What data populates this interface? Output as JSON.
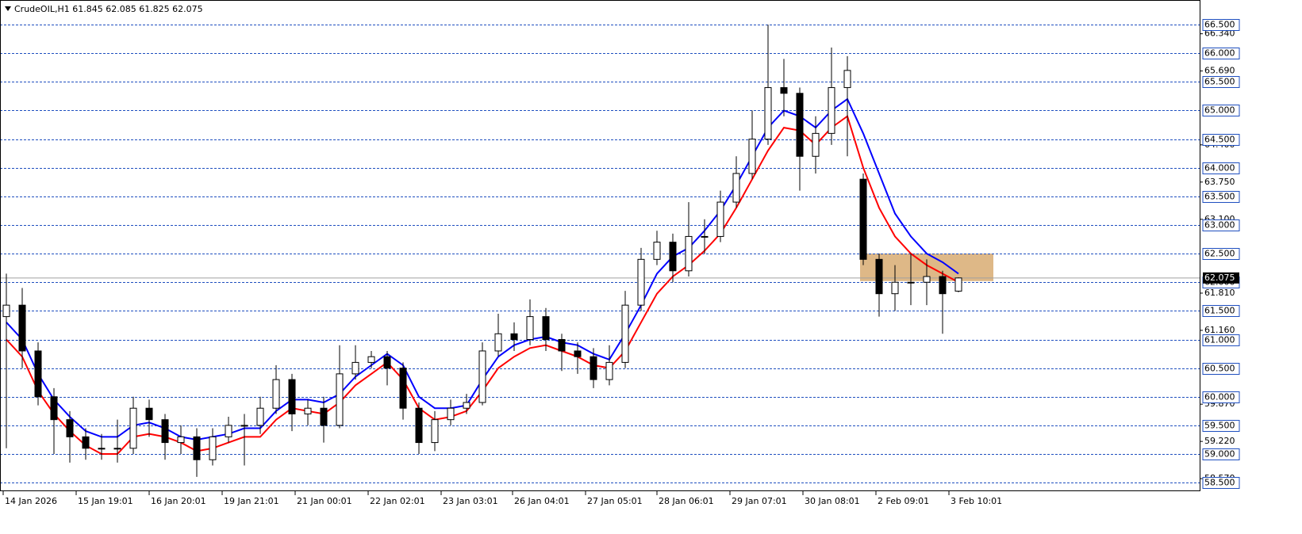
{
  "chart_data": {
    "type": "candlestick",
    "title": "CrudeOIL,H1  61.845 62.085 61.825 62.075",
    "x": [
      2,
      7,
      12,
      17,
      22,
      27,
      32,
      37,
      42,
      47,
      52,
      57,
      62,
      67,
      72,
      77,
      82,
      87,
      92,
      97,
      102,
      107,
      112,
      117,
      122,
      127,
      132,
      137,
      142,
      147,
      152,
      157,
      162,
      167,
      172,
      177,
      182,
      187,
      192,
      197,
      202,
      207,
      212,
      217,
      222,
      227,
      232,
      237,
      242,
      247,
      252,
      257,
      262,
      267,
      272,
      277,
      282,
      287,
      292,
      297,
      302
    ],
    "open": [
      61.4,
      61.6,
      60.8,
      60.0,
      59.6,
      59.3,
      59.1,
      59.1,
      59.1,
      59.8,
      59.6,
      59.2,
      59.3,
      58.9,
      59.3,
      59.5,
      59.5,
      59.8,
      60.3,
      59.7,
      59.8,
      59.5,
      60.4,
      60.6,
      60.7,
      60.5,
      59.8,
      59.2,
      59.6,
      59.8,
      59.9,
      60.8,
      61.1,
      61.0,
      61.4,
      61.0,
      60.8,
      60.7,
      60.3,
      60.6,
      61.6,
      62.4,
      62.7,
      62.2,
      62.8,
      62.8,
      63.4,
      63.9,
      64.5,
      65.4,
      65.3,
      64.2,
      64.6,
      65.4,
      63.8,
      62.4,
      61.8,
      62.0,
      62.0,
      62.1,
      61.845
    ],
    "high": [
      62.15,
      61.9,
      60.95,
      60.15,
      59.75,
      59.45,
      59.35,
      59.6,
      60.0,
      59.95,
      59.7,
      59.5,
      59.45,
      59.45,
      59.65,
      59.7,
      60.0,
      60.55,
      60.4,
      59.95,
      60.0,
      60.9,
      60.9,
      60.8,
      60.8,
      60.6,
      59.9,
      59.75,
      59.95,
      60.05,
      60.95,
      61.45,
      61.3,
      61.7,
      61.55,
      61.1,
      60.95,
      60.85,
      60.9,
      61.85,
      62.6,
      62.9,
      62.85,
      63.4,
      63.1,
      63.6,
      64.2,
      65.0,
      66.5,
      65.9,
      65.4,
      64.9,
      66.1,
      65.95,
      63.9,
      62.5,
      62.3,
      62.5,
      62.4,
      62.2,
      62.085
    ],
    "low": [
      59.1,
      60.5,
      59.85,
      59.0,
      58.85,
      58.9,
      58.9,
      58.85,
      59.0,
      59.3,
      58.9,
      59.0,
      58.6,
      58.8,
      59.2,
      58.8,
      59.35,
      59.7,
      59.4,
      59.5,
      59.2,
      59.45,
      60.3,
      60.5,
      60.2,
      59.6,
      59.0,
      59.05,
      59.5,
      59.7,
      59.85,
      60.7,
      60.8,
      60.9,
      60.8,
      60.45,
      60.4,
      60.15,
      60.2,
      60.5,
      61.5,
      62.3,
      62.0,
      62.1,
      62.5,
      62.7,
      63.3,
      63.8,
      64.4,
      64.9,
      63.6,
      63.9,
      64.4,
      64.2,
      62.3,
      61.4,
      61.5,
      61.6,
      61.6,
      61.1,
      61.825
    ],
    "close": [
      61.6,
      60.8,
      60.0,
      59.6,
      59.3,
      59.1,
      59.1,
      59.1,
      59.8,
      59.6,
      59.2,
      59.3,
      58.9,
      59.3,
      59.5,
      59.5,
      59.8,
      60.3,
      59.7,
      59.8,
      59.5,
      60.4,
      60.6,
      60.7,
      60.5,
      59.8,
      59.2,
      59.6,
      59.8,
      59.9,
      60.8,
      61.1,
      61.0,
      61.4,
      61.0,
      60.8,
      60.7,
      60.3,
      60.6,
      61.6,
      62.4,
      62.7,
      62.2,
      62.8,
      62.8,
      63.4,
      63.9,
      64.5,
      65.4,
      65.3,
      64.2,
      64.6,
      65.4,
      65.7,
      62.4,
      61.8,
      62.0,
      62.0,
      62.1,
      61.8,
      62.075
    ],
    "up_color": "#ffffff",
    "down_color": "#000000",
    "series": [
      {
        "color": "#ff0000",
        "values": [
          61.0,
          60.7,
          60.1,
          59.7,
          59.4,
          59.15,
          59.0,
          59.0,
          59.3,
          59.35,
          59.3,
          59.2,
          59.05,
          59.1,
          59.2,
          59.3,
          59.3,
          59.6,
          59.8,
          59.75,
          59.7,
          59.9,
          60.2,
          60.4,
          60.6,
          60.3,
          59.8,
          59.6,
          59.65,
          59.75,
          60.1,
          60.5,
          60.7,
          60.85,
          60.9,
          60.8,
          60.7,
          60.55,
          60.5,
          60.8,
          61.3,
          61.8,
          62.1,
          62.3,
          62.55,
          62.85,
          63.3,
          63.8,
          64.3,
          64.7,
          64.65,
          64.4,
          64.7,
          64.9,
          64.0,
          63.3,
          62.8,
          62.5,
          62.3,
          62.15,
          62.0
        ]
      },
      {
        "color": "#0000ff",
        "values": [
          61.3,
          61.0,
          60.4,
          59.95,
          59.65,
          59.4,
          59.3,
          59.3,
          59.5,
          59.55,
          59.45,
          59.3,
          59.25,
          59.3,
          59.35,
          59.45,
          59.45,
          59.75,
          59.95,
          59.95,
          59.9,
          60.05,
          60.35,
          60.55,
          60.75,
          60.55,
          60.0,
          59.8,
          59.8,
          59.85,
          60.3,
          60.7,
          60.9,
          61.0,
          61.05,
          60.95,
          60.9,
          60.75,
          60.65,
          61.1,
          61.6,
          62.15,
          62.45,
          62.6,
          62.9,
          63.25,
          63.7,
          64.2,
          64.7,
          65.0,
          64.9,
          64.7,
          65.0,
          65.2,
          64.6,
          63.9,
          63.2,
          62.8,
          62.5,
          62.35,
          62.15
        ]
      }
    ],
    "zone": {
      "x": [
        271,
        313
      ],
      "y": [
        62.02,
        62.5
      ],
      "color": "#deb887"
    },
    "xlim": [
      0,
      378
    ],
    "xticks": [
      {
        "value": 1,
        "label": "14 Jan 2026"
      },
      {
        "value": 24,
        "label": "15 Jan 19:01"
      },
      {
        "value": 47,
        "label": "16 Jan 20:01"
      },
      {
        "value": 70,
        "label": "19 Jan 21:01"
      },
      {
        "value": 93,
        "label": "21 Jan 00:01"
      },
      {
        "value": 116,
        "label": "22 Jan 02:01"
      },
      {
        "value": 139,
        "label": "23 Jan 03:01"
      },
      {
        "value": 161.5,
        "label": "26 Jan 04:01"
      },
      {
        "value": 184.5,
        "label": "27 Jan 05:01"
      },
      {
        "value": 207,
        "label": "28 Jan 06:01"
      },
      {
        "value": 230,
        "label": "29 Jan 07:01"
      },
      {
        "value": 253,
        "label": "30 Jan 08:01"
      },
      {
        "value": 276,
        "label": "2 Feb 09:01"
      },
      {
        "value": 299,
        "label": "3 Feb 10:01"
      }
    ],
    "ylim": [
      58.35,
      66.93
    ],
    "yticks": [
      {
        "value": 66.34,
        "label": "66.340"
      },
      {
        "value": 65.69,
        "label": "65.690"
      },
      {
        "value": 64.4,
        "label": "64.400"
      },
      {
        "value": 63.75,
        "label": "63.750"
      },
      {
        "value": 63.1,
        "label": "63.100"
      },
      {
        "value": 61.81,
        "label": "61.810"
      },
      {
        "value": 61.16,
        "label": "61.160"
      },
      {
        "value": 59.87,
        "label": "59.870"
      },
      {
        "value": 59.22,
        "label": "59.220"
      },
      {
        "value": 58.57,
        "label": "58.570"
      }
    ],
    "levels": [
      {
        "value": 66.5,
        "label": "66.500"
      },
      {
        "value": 66,
        "label": "66.000"
      },
      {
        "value": 65.5,
        "label": "65.500"
      },
      {
        "value": 65,
        "label": "65.000"
      },
      {
        "value": 64.5,
        "label": "64.500"
      },
      {
        "value": 64,
        "label": "64.000"
      },
      {
        "value": 63.5,
        "label": "63.500"
      },
      {
        "value": 63,
        "label": "63.000"
      },
      {
        "value": 62.5,
        "label": "62.500"
      },
      {
        "value": 62,
        "label": "62.000"
      },
      {
        "value": 61.5,
        "label": "61.500"
      },
      {
        "value": 61,
        "label": "61.000"
      },
      {
        "value": 60.5,
        "label": "60.500"
      },
      {
        "value": 60,
        "label": "60.000"
      },
      {
        "value": 59.5,
        "label": "59.500"
      },
      {
        "value": 59,
        "label": "59.000"
      },
      {
        "value": 58.5,
        "label": "58.500"
      }
    ],
    "level_color": "#1f4fbf",
    "last_price": {
      "value": 62.075,
      "label": "62.075"
    }
  }
}
